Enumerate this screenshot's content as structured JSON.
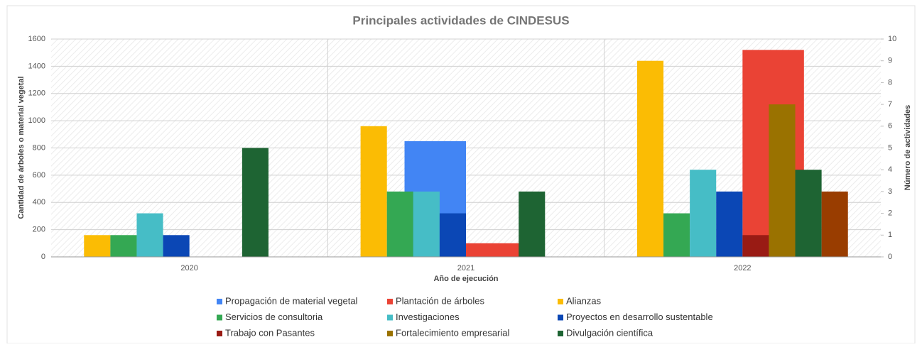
{
  "chart_data": {
    "type": "bar",
    "title": "Principales actividades de CINDESUS",
    "xlabel": "Año de ejecución",
    "ylabel": "Cantidad de árboles o material vegetal",
    "y2label": "Número de actividades",
    "categories": [
      "2020",
      "2021",
      "2022"
    ],
    "ylim": [
      0,
      1600
    ],
    "yticks": [
      0,
      200,
      400,
      600,
      800,
      1000,
      1200,
      1400,
      1600
    ],
    "y2lim": [
      0,
      10
    ],
    "y2ticks": [
      0,
      1,
      2,
      3,
      4,
      5,
      6,
      7,
      8,
      9,
      10
    ],
    "grid": true,
    "legend": "bottom",
    "series": [
      {
        "name": "Propagación de material vegetal",
        "color": "#4285f4",
        "values": [
          null,
          850,
          null
        ]
      },
      {
        "name": "Plantación de árboles",
        "color": "#ea4335",
        "values": [
          null,
          100,
          1520
        ]
      },
      {
        "name": "Alianzas",
        "color": "#fbbc04",
        "axis": "y2",
        "values": [
          1,
          6,
          9
        ]
      },
      {
        "name": "Servicios de consultoria",
        "color": "#34a853",
        "axis": "y2",
        "values": [
          1,
          3,
          2
        ]
      },
      {
        "name": "Investigaciones",
        "color": "#46bdc6",
        "axis": "y2",
        "values": [
          2,
          3,
          4
        ]
      },
      {
        "name": "Proyectos en desarrollo sustentable",
        "color": "#0b47b5",
        "axis": "y2",
        "values": [
          1,
          2,
          3
        ]
      },
      {
        "name": "Trabajo con Pasantes",
        "color": "#991b14",
        "axis": "y2",
        "values": [
          null,
          null,
          1
        ]
      },
      {
        "name": "Fortalecimiento empresarial",
        "color": "#9a7200",
        "axis": "y2",
        "values": [
          null,
          null,
          7
        ]
      },
      {
        "name": "Divulgación científica",
        "color": "#1e6433",
        "axis": "y2",
        "values": [
          5,
          3,
          4
        ]
      },
      {
        "color": "#993d00",
        "axis": "y2",
        "values": [
          null,
          null,
          3
        ]
      }
    ]
  }
}
